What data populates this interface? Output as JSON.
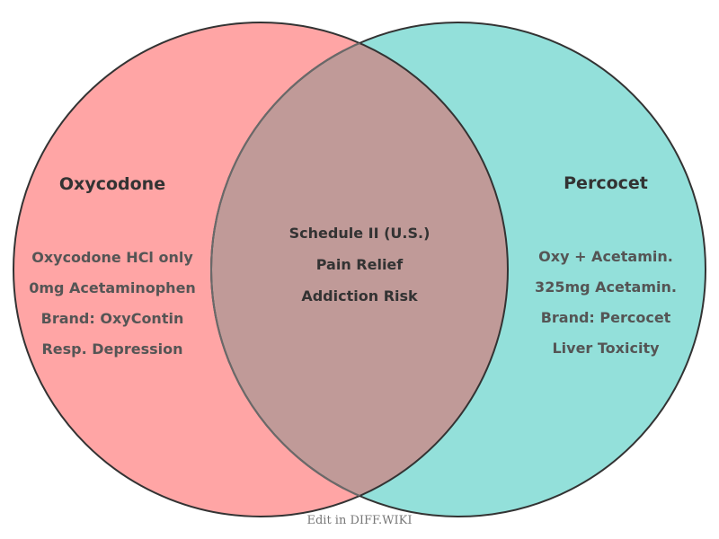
{
  "left": {
    "title": "Oxycodone",
    "color": "#FFA5A5",
    "items": [
      "Oxycodone HCl only",
      "0mg Acetaminophen",
      "Brand: OxyContin",
      "Resp. Depression"
    ]
  },
  "right": {
    "title": "Percocet",
    "color": "#93E0DA",
    "items": [
      "Oxy + Acetamin.",
      "325mg Acetamin.",
      "Brand: Percocet",
      "Liver Toxicity"
    ]
  },
  "overlap": {
    "color": "#C09A98",
    "items": [
      "Schedule II (U.S.)",
      "Pain Relief",
      "Addiction Risk"
    ]
  },
  "footer": "Edit in DIFF.WIKI"
}
